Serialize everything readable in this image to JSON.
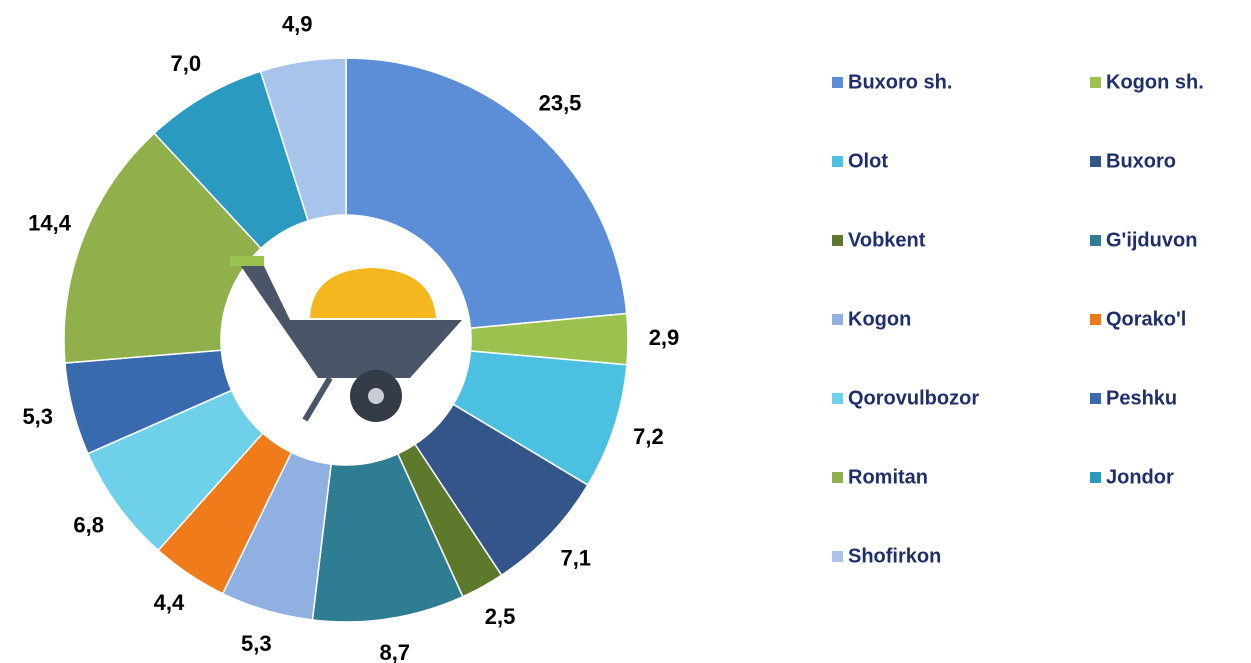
{
  "chart_data": {
    "type": "donut",
    "categories": [
      "Buxoro sh.",
      "Kogon sh.",
      "Olot",
      "Buxoro",
      "Vobkent",
      "G'ijduvon",
      "Kogon",
      "Qorako'l",
      "Qorovulbozor",
      "Peshku",
      "Romitan",
      "Jondor",
      "Shofirkon"
    ],
    "values": [
      23.5,
      2.9,
      7.2,
      7.1,
      2.5,
      8.7,
      5.3,
      4.4,
      6.8,
      5.3,
      14.4,
      7.0,
      4.9
    ],
    "value_labels": [
      "23,5",
      "2,9",
      "7,2",
      "7,1",
      "2,5",
      "8,7",
      "5,3",
      "4,4",
      "6,8",
      "5,3",
      "14,4",
      "7,0",
      "4,9"
    ],
    "colors": [
      "#5b8ed6",
      "#9bc24f",
      "#4cc0e0",
      "#34558a",
      "#5d7a2c",
      "#2f7d92",
      "#8fb0e0",
      "#f07b1a",
      "#6fd0ea",
      "#3a6aae",
      "#8fb04a",
      "#2a9ac0",
      "#a9c4ea"
    ],
    "legend": "right"
  }
}
